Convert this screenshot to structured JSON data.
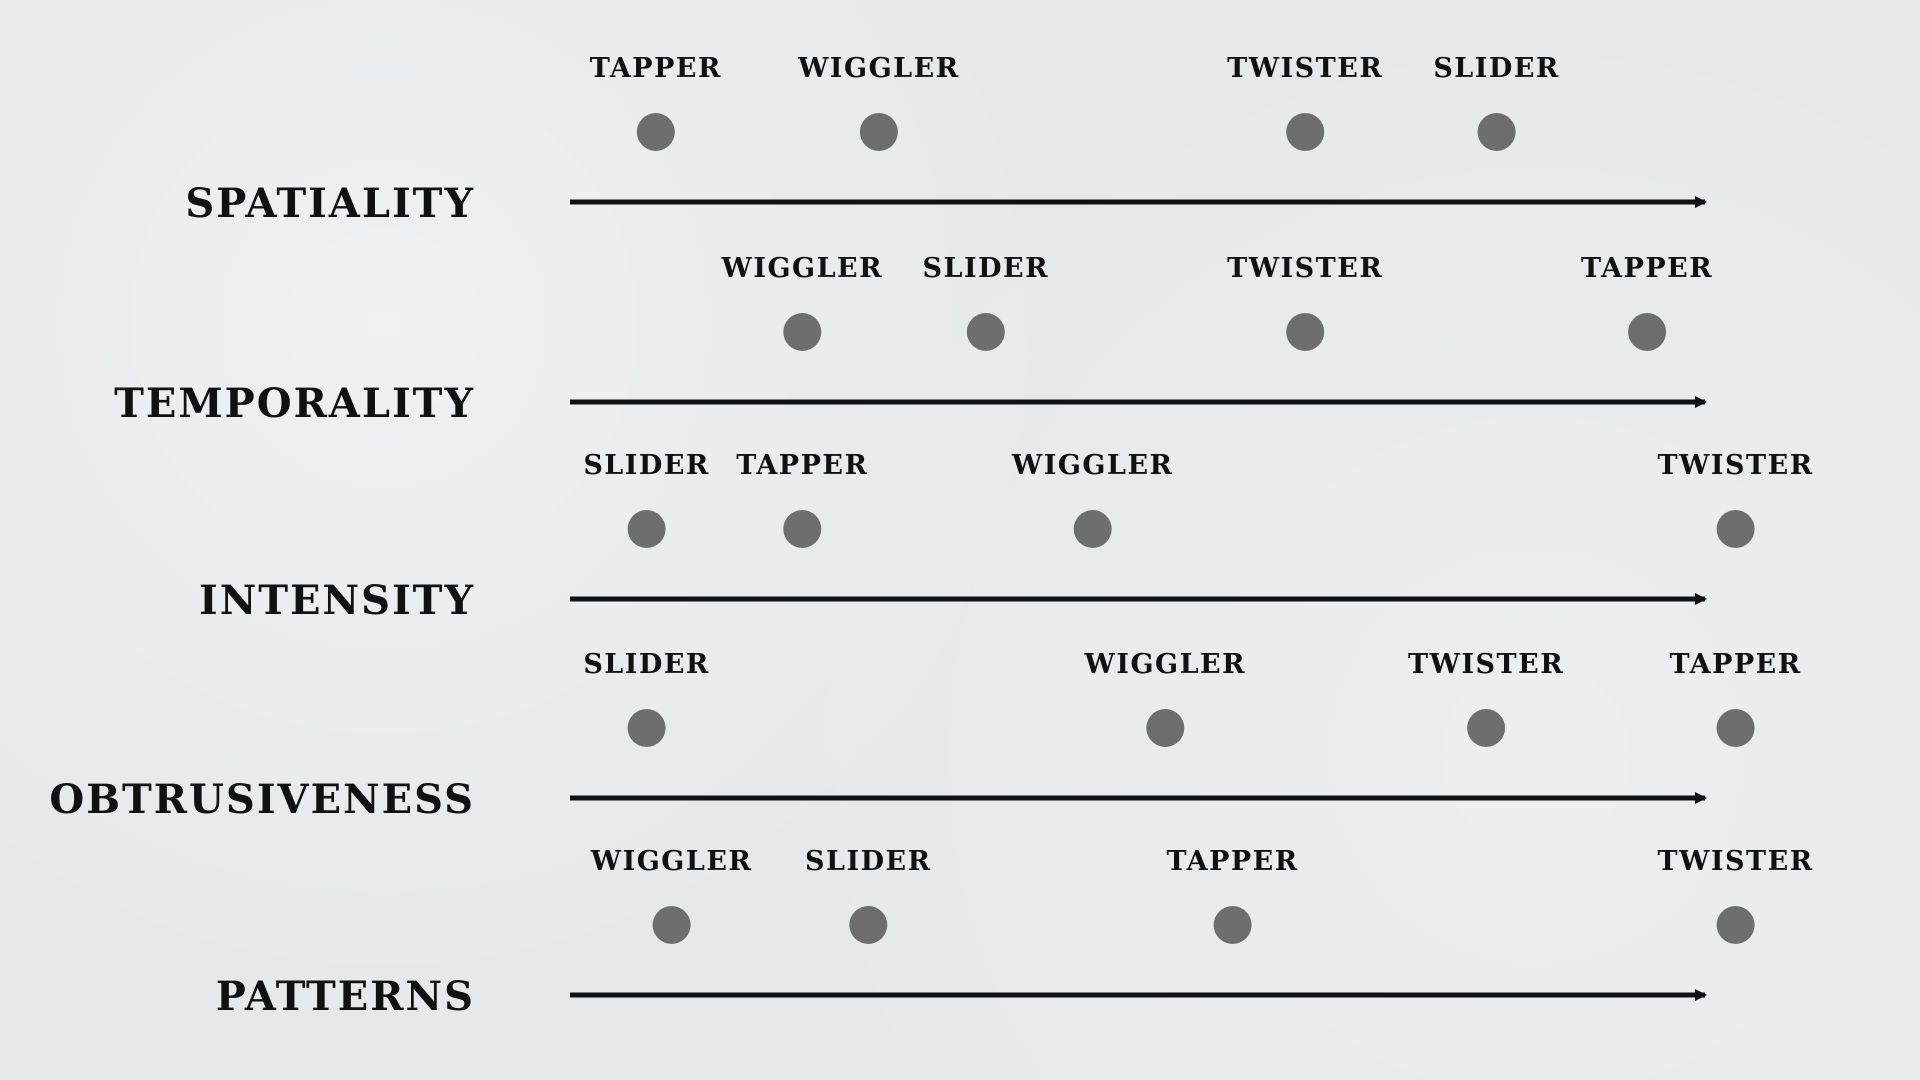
{
  "colors": {
    "background": "#e6e9ec",
    "dot": "#6e6e72",
    "axis": "#111111",
    "text": "#111111"
  },
  "items": [
    "TAPPER",
    "WIGGLER",
    "TWISTER",
    "SLIDER"
  ],
  "rows": [
    {
      "axis": "SPATIALITY",
      "points": [
        {
          "item": "TAPPER",
          "value": 0.065
        },
        {
          "item": "WIGGLER",
          "value": 0.234
        },
        {
          "item": "TWISTER",
          "value": 0.557
        },
        {
          "item": "SLIDER",
          "value": 0.702
        }
      ]
    },
    {
      "axis": "TEMPORALITY",
      "points": [
        {
          "item": "WIGGLER",
          "value": 0.176
        },
        {
          "item": "SLIDER",
          "value": 0.315
        },
        {
          "item": "TWISTER",
          "value": 0.557
        },
        {
          "item": "TAPPER",
          "value": 0.816
        }
      ]
    },
    {
      "axis": "INTENSITY",
      "points": [
        {
          "item": "SLIDER",
          "value": 0.058
        },
        {
          "item": "TAPPER",
          "value": 0.176
        },
        {
          "item": "WIGGLER",
          "value": 0.396
        },
        {
          "item": "TWISTER",
          "value": 0.883
        }
      ]
    },
    {
      "axis": "OBTRUSIVENESS",
      "points": [
        {
          "item": "SLIDER",
          "value": 0.058
        },
        {
          "item": "WIGGLER",
          "value": 0.451
        },
        {
          "item": "TWISTER",
          "value": 0.694
        },
        {
          "item": "TAPPER",
          "value": 0.883
        }
      ]
    },
    {
      "axis": "PATTERNS",
      "points": [
        {
          "item": "WIGGLER",
          "value": 0.077
        },
        {
          "item": "SLIDER",
          "value": 0.226
        },
        {
          "item": "TAPPER",
          "value": 0.502
        },
        {
          "item": "TWISTER",
          "value": 0.883
        }
      ]
    }
  ]
}
